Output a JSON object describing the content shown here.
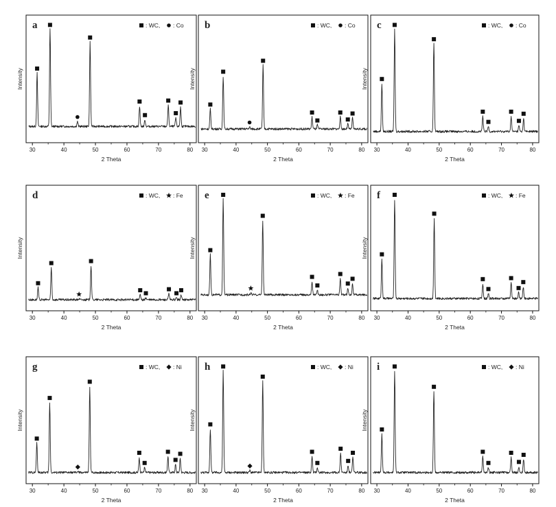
{
  "figure": {
    "xlabel": "2 Theta",
    "ylabel": "Intensity",
    "xlim": [
      28,
      82
    ],
    "xticks": [
      30,
      40,
      50,
      60,
      70,
      80
    ]
  },
  "chart_data": [
    {
      "type": "line",
      "panel": "a",
      "xlabel": "2 Theta",
      "ylabel": "Intensity",
      "xlim": [
        28,
        82
      ],
      "xticks": [
        30,
        40,
        50,
        60,
        70,
        80
      ],
      "legend": {
        "placement": "top-right",
        "entries": [
          {
            "marker": "square",
            "label": ": WC,"
          },
          {
            "marker": "circle",
            "label": ": Co"
          }
        ]
      },
      "peaks": [
        {
          "x": 31.5,
          "y": 0.55,
          "phase": "WC",
          "marker": "square"
        },
        {
          "x": 35.6,
          "y": 1.0,
          "phase": "WC",
          "marker": "square"
        },
        {
          "x": 44.3,
          "y": 0.05,
          "phase": "Co",
          "marker": "circle"
        },
        {
          "x": 48.3,
          "y": 0.87,
          "phase": "WC",
          "marker": "square"
        },
        {
          "x": 64.0,
          "y": 0.21,
          "phase": "WC",
          "marker": "square"
        },
        {
          "x": 65.7,
          "y": 0.07,
          "phase": "WC",
          "marker": "square"
        },
        {
          "x": 73.1,
          "y": 0.22,
          "phase": "WC",
          "marker": "square"
        },
        {
          "x": 75.5,
          "y": 0.09,
          "phase": "WC",
          "marker": "square"
        },
        {
          "x": 77.0,
          "y": 0.2,
          "phase": "WC",
          "marker": "square"
        }
      ]
    },
    {
      "type": "line",
      "panel": "b",
      "xlabel": "2 Theta",
      "ylabel": "Intensity",
      "xlim": [
        28,
        82
      ],
      "xticks": [
        30,
        40,
        50,
        60,
        70,
        80
      ],
      "legend": {
        "placement": "top-right",
        "entries": [
          {
            "marker": "square",
            "label": ": WC,"
          },
          {
            "marker": "circle",
            "label": ": Co"
          }
        ]
      },
      "peaks": [
        {
          "x": 31.8,
          "y": 0.2,
          "phase": "WC",
          "marker": "square"
        },
        {
          "x": 35.9,
          "y": 0.53,
          "phase": "WC",
          "marker": "square"
        },
        {
          "x": 44.3,
          "y": 0.02,
          "phase": "Co",
          "marker": "circle"
        },
        {
          "x": 48.6,
          "y": 0.64,
          "phase": "WC",
          "marker": "square"
        },
        {
          "x": 64.2,
          "y": 0.12,
          "phase": "WC",
          "marker": "square"
        },
        {
          "x": 65.9,
          "y": 0.04,
          "phase": "WC",
          "marker": "square"
        },
        {
          "x": 73.2,
          "y": 0.12,
          "phase": "WC",
          "marker": "square"
        },
        {
          "x": 75.6,
          "y": 0.05,
          "phase": "WC",
          "marker": "square"
        },
        {
          "x": 77.1,
          "y": 0.11,
          "phase": "WC",
          "marker": "square"
        }
      ]
    },
    {
      "type": "line",
      "panel": "c",
      "xlabel": "2 Theta",
      "ylabel": "Intensity",
      "xlim": [
        28,
        82
      ],
      "xticks": [
        30,
        40,
        50,
        60,
        70,
        80
      ],
      "legend": {
        "placement": "top-right",
        "entries": [
          {
            "marker": "square",
            "label": ": WC,"
          },
          {
            "marker": "circle",
            "label": ": Co"
          }
        ]
      },
      "peaks": [
        {
          "x": 31.6,
          "y": 0.47,
          "phase": "WC",
          "marker": "square"
        },
        {
          "x": 35.7,
          "y": 1.0,
          "phase": "WC",
          "marker": "square"
        },
        {
          "x": 48.3,
          "y": 0.86,
          "phase": "WC",
          "marker": "square"
        },
        {
          "x": 64.0,
          "y": 0.15,
          "phase": "WC",
          "marker": "square"
        },
        {
          "x": 65.8,
          "y": 0.05,
          "phase": "WC",
          "marker": "square"
        },
        {
          "x": 73.1,
          "y": 0.15,
          "phase": "WC",
          "marker": "square"
        },
        {
          "x": 75.6,
          "y": 0.06,
          "phase": "WC",
          "marker": "square"
        },
        {
          "x": 77.1,
          "y": 0.13,
          "phase": "WC",
          "marker": "square"
        }
      ]
    },
    {
      "type": "line",
      "panel": "d",
      "xlabel": "2 Theta",
      "ylabel": "Intensity",
      "xlim": [
        28,
        82
      ],
      "xticks": [
        30,
        40,
        50,
        60,
        70,
        80
      ],
      "legend": {
        "placement": "top-right",
        "entries": [
          {
            "marker": "square",
            "label": ": WC,"
          },
          {
            "marker": "star",
            "label": ": Fe"
          }
        ]
      },
      "peaks": [
        {
          "x": 31.8,
          "y": 0.12,
          "phase": "WC",
          "marker": "square"
        },
        {
          "x": 36.0,
          "y": 0.32,
          "phase": "WC",
          "marker": "square"
        },
        {
          "x": 44.8,
          "y": 0.01,
          "phase": "Fe",
          "marker": "star"
        },
        {
          "x": 48.6,
          "y": 0.34,
          "phase": "WC",
          "marker": "square"
        },
        {
          "x": 64.2,
          "y": 0.05,
          "phase": "WC",
          "marker": "square"
        },
        {
          "x": 66.0,
          "y": 0.02,
          "phase": "WC",
          "marker": "square"
        },
        {
          "x": 73.3,
          "y": 0.06,
          "phase": "WC",
          "marker": "square"
        },
        {
          "x": 75.7,
          "y": 0.02,
          "phase": "WC",
          "marker": "square"
        },
        {
          "x": 77.2,
          "y": 0.05,
          "phase": "WC",
          "marker": "square"
        }
      ]
    },
    {
      "type": "line",
      "panel": "e",
      "xlabel": "2 Theta",
      "ylabel": "Intensity",
      "xlim": [
        28,
        82
      ],
      "xticks": [
        30,
        40,
        50,
        60,
        70,
        80
      ],
      "legend": {
        "placement": "top-right",
        "entries": [
          {
            "marker": "square",
            "label": ": WC,"
          },
          {
            "marker": "star",
            "label": ": Fe"
          }
        ]
      },
      "peaks": [
        {
          "x": 31.8,
          "y": 0.42,
          "phase": "WC",
          "marker": "square"
        },
        {
          "x": 35.9,
          "y": 1.0,
          "phase": "WC",
          "marker": "square"
        },
        {
          "x": 44.7,
          "y": 0.02,
          "phase": "Fe",
          "marker": "star"
        },
        {
          "x": 48.5,
          "y": 0.78,
          "phase": "WC",
          "marker": "square"
        },
        {
          "x": 64.2,
          "y": 0.14,
          "phase": "WC",
          "marker": "square"
        },
        {
          "x": 65.9,
          "y": 0.05,
          "phase": "WC",
          "marker": "square"
        },
        {
          "x": 73.2,
          "y": 0.17,
          "phase": "WC",
          "marker": "square"
        },
        {
          "x": 75.6,
          "y": 0.07,
          "phase": "WC",
          "marker": "square"
        },
        {
          "x": 77.1,
          "y": 0.12,
          "phase": "WC",
          "marker": "square"
        }
      ]
    },
    {
      "type": "line",
      "panel": "f",
      "xlabel": "2 Theta",
      "ylabel": "Intensity",
      "xlim": [
        28,
        82
      ],
      "xticks": [
        30,
        40,
        50,
        60,
        70,
        80
      ],
      "legend": {
        "placement": "top-right",
        "entries": [
          {
            "marker": "square",
            "label": ": WC,"
          },
          {
            "marker": "star",
            "label": ": Fe"
          }
        ]
      },
      "peaks": [
        {
          "x": 31.6,
          "y": 0.4,
          "phase": "WC",
          "marker": "square"
        },
        {
          "x": 35.7,
          "y": 1.0,
          "phase": "WC",
          "marker": "square"
        },
        {
          "x": 48.4,
          "y": 0.81,
          "phase": "WC",
          "marker": "square"
        },
        {
          "x": 64.0,
          "y": 0.15,
          "phase": "WC",
          "marker": "square"
        },
        {
          "x": 65.8,
          "y": 0.05,
          "phase": "WC",
          "marker": "square"
        },
        {
          "x": 73.1,
          "y": 0.16,
          "phase": "WC",
          "marker": "square"
        },
        {
          "x": 75.5,
          "y": 0.06,
          "phase": "WC",
          "marker": "square"
        },
        {
          "x": 77.0,
          "y": 0.12,
          "phase": "WC",
          "marker": "square"
        }
      ]
    },
    {
      "type": "line",
      "panel": "g",
      "xlabel": "2 Theta",
      "ylabel": "Intensity",
      "xlim": [
        28,
        82
      ],
      "xticks": [
        30,
        40,
        50,
        60,
        70,
        80
      ],
      "legend": {
        "placement": "top-right",
        "entries": [
          {
            "marker": "square",
            "label": ": WC,"
          },
          {
            "marker": "diamond",
            "label": ": Ni"
          }
        ]
      },
      "peaks": [
        {
          "x": 31.4,
          "y": 0.29,
          "phase": "WC",
          "marker": "square"
        },
        {
          "x": 35.5,
          "y": 0.69,
          "phase": "WC",
          "marker": "square"
        },
        {
          "x": 44.4,
          "y": 0.01,
          "phase": "Ni",
          "marker": "diamond"
        },
        {
          "x": 48.2,
          "y": 0.85,
          "phase": "WC",
          "marker": "square"
        },
        {
          "x": 63.9,
          "y": 0.15,
          "phase": "WC",
          "marker": "square"
        },
        {
          "x": 65.6,
          "y": 0.05,
          "phase": "WC",
          "marker": "square"
        },
        {
          "x": 73.0,
          "y": 0.16,
          "phase": "WC",
          "marker": "square"
        },
        {
          "x": 75.4,
          "y": 0.08,
          "phase": "WC",
          "marker": "square"
        },
        {
          "x": 76.9,
          "y": 0.14,
          "phase": "WC",
          "marker": "square"
        }
      ]
    },
    {
      "type": "line",
      "panel": "h",
      "xlabel": "2 Theta",
      "ylabel": "Intensity",
      "xlim": [
        28,
        82
      ],
      "xticks": [
        30,
        40,
        50,
        60,
        70,
        80
      ],
      "legend": {
        "placement": "top-right",
        "entries": [
          {
            "marker": "square",
            "label": ": WC,"
          },
          {
            "marker": "diamond",
            "label": ": Ni"
          }
        ]
      },
      "peaks": [
        {
          "x": 31.8,
          "y": 0.43,
          "phase": "WC",
          "marker": "square"
        },
        {
          "x": 35.9,
          "y": 1.0,
          "phase": "WC",
          "marker": "square"
        },
        {
          "x": 44.4,
          "y": 0.02,
          "phase": "Ni",
          "marker": "diamond"
        },
        {
          "x": 48.5,
          "y": 0.9,
          "phase": "WC",
          "marker": "square"
        },
        {
          "x": 64.2,
          "y": 0.16,
          "phase": "WC",
          "marker": "square"
        },
        {
          "x": 65.9,
          "y": 0.05,
          "phase": "WC",
          "marker": "square"
        },
        {
          "x": 73.3,
          "y": 0.19,
          "phase": "WC",
          "marker": "square"
        },
        {
          "x": 75.7,
          "y": 0.07,
          "phase": "WC",
          "marker": "square"
        },
        {
          "x": 77.2,
          "y": 0.15,
          "phase": "WC",
          "marker": "square"
        }
      ]
    },
    {
      "type": "line",
      "panel": "i",
      "xlabel": "2 Theta",
      "ylabel": "Intensity",
      "xlim": [
        28,
        82
      ],
      "xticks": [
        30,
        40,
        50,
        60,
        70,
        80
      ],
      "legend": {
        "placement": "top-right",
        "entries": [
          {
            "marker": "square",
            "label": ": WC,"
          },
          {
            "marker": "diamond",
            "label": ": Ni"
          }
        ]
      },
      "peaks": [
        {
          "x": 31.6,
          "y": 0.38,
          "phase": "WC",
          "marker": "square"
        },
        {
          "x": 35.7,
          "y": 1.0,
          "phase": "WC",
          "marker": "square"
        },
        {
          "x": 48.3,
          "y": 0.8,
          "phase": "WC",
          "marker": "square"
        },
        {
          "x": 64.0,
          "y": 0.16,
          "phase": "WC",
          "marker": "square"
        },
        {
          "x": 65.8,
          "y": 0.05,
          "phase": "WC",
          "marker": "square"
        },
        {
          "x": 73.1,
          "y": 0.15,
          "phase": "WC",
          "marker": "square"
        },
        {
          "x": 75.6,
          "y": 0.06,
          "phase": "WC",
          "marker": "square"
        },
        {
          "x": 77.1,
          "y": 0.13,
          "phase": "WC",
          "marker": "square"
        }
      ]
    }
  ]
}
